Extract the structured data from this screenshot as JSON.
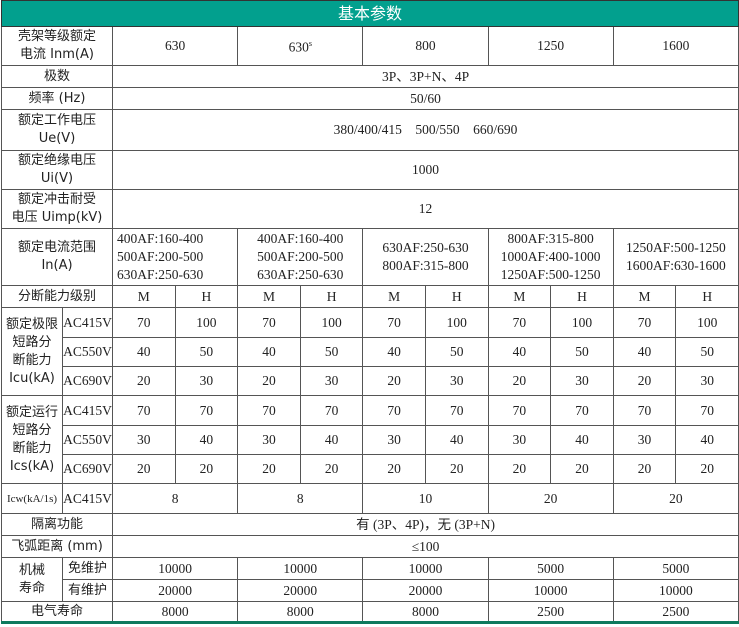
{
  "title": "基本参数",
  "frame": {
    "label": "壳架等级额定\n电流 Inm(A)",
    "values": [
      "630",
      "630s",
      "800",
      "1250",
      "1600"
    ]
  },
  "poles": {
    "label": "极数",
    "value": "3P、3P+N、4P"
  },
  "freq": {
    "label": "频率 (Hz)",
    "value": "50/60"
  },
  "ue": {
    "label": "额定工作电压\nUe(V)",
    "value": "380/400/415    500/550    660/690"
  },
  "ui": {
    "label": "额定绝缘电压\nUi(V)",
    "value": "1000"
  },
  "uimp": {
    "label": "额定冲击耐受\n电压 Uimp(kV)",
    "value": "12"
  },
  "current_range": {
    "label": "额定电流范围\nIn(A)",
    "values": [
      "400AF:160-400\n500AF:200-500\n630AF:250-630",
      "400AF:160-400\n500AF:200-500\n630AF:250-630",
      "630AF:250-630\n800AF:315-800",
      "800AF:315-800\n1000AF:400-1000\n1250AF:500-1250",
      "1250AF:500-1250\n1600AF:630-1600"
    ]
  },
  "breaking": {
    "label": "分断能力级别",
    "grades": [
      "M",
      "H"
    ]
  },
  "icu": {
    "label": "额定极限\n短路分\n断能力\nIcu(kA)",
    "rows": [
      {
        "voltage": "AC415V",
        "values": [
          "70",
          "100",
          "70",
          "100",
          "70",
          "100",
          "70",
          "100",
          "70",
          "100"
        ]
      },
      {
        "voltage": "AC550V",
        "values": [
          "40",
          "50",
          "40",
          "50",
          "40",
          "50",
          "40",
          "50",
          "40",
          "50"
        ]
      },
      {
        "voltage": "AC690V",
        "values": [
          "20",
          "30",
          "20",
          "30",
          "20",
          "30",
          "20",
          "30",
          "20",
          "30"
        ]
      }
    ]
  },
  "ics": {
    "label": "额定运行\n短路分\n断能力\nIcs(kA)",
    "rows": [
      {
        "voltage": "AC415V",
        "values": [
          "70",
          "70",
          "70",
          "70",
          "70",
          "70",
          "70",
          "70",
          "70",
          "70"
        ]
      },
      {
        "voltage": "AC550V",
        "values": [
          "30",
          "40",
          "30",
          "40",
          "30",
          "40",
          "30",
          "40",
          "30",
          "40"
        ]
      },
      {
        "voltage": "AC690V",
        "values": [
          "20",
          "20",
          "20",
          "20",
          "20",
          "20",
          "20",
          "20",
          "20",
          "20"
        ]
      }
    ]
  },
  "icw": {
    "label": "Icw(kA/1s)",
    "voltage": "AC415V",
    "values": [
      "8",
      "8",
      "10",
      "20",
      "20"
    ]
  },
  "isolation": {
    "label": "隔离功能",
    "value": "有 (3P、4P)，无 (3P+N)"
  },
  "arc": {
    "label": "飞弧距离 (mm)",
    "value": "≤100"
  },
  "mech": {
    "label": "机械\n寿命",
    "rows": [
      {
        "label": "免维护",
        "values": [
          "10000",
          "10000",
          "10000",
          "5000",
          "5000"
        ]
      },
      {
        "label": "有维护",
        "values": [
          "20000",
          "20000",
          "20000",
          "10000",
          "10000"
        ]
      }
    ]
  },
  "elec": {
    "label": "电气寿命",
    "values": [
      "8000",
      "8000",
      "8000",
      "2500",
      "2500"
    ]
  }
}
